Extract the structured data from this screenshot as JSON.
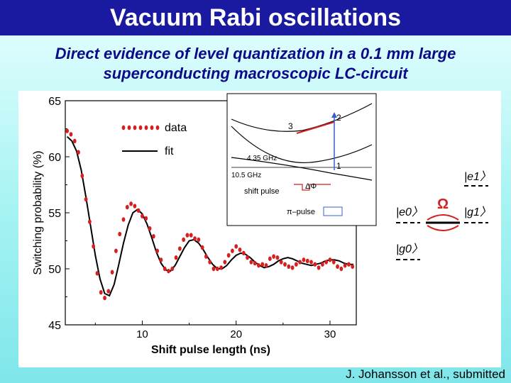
{
  "slide": {
    "title": "Vacuum Rabi oscillations",
    "subtitle_line1": "Direct evidence of level quantization in a 0.1 mm large",
    "subtitle_line2": "superconducting macroscopic LC-circuit",
    "citation": "J. Johansson et al., submitted"
  },
  "chart_data": {
    "type": "scatter",
    "xlabel": "Shift pulse length (ns)",
    "ylabel": "Switching probability (%)",
    "xlim": [
      1.8,
      32.8
    ],
    "ylim": [
      45,
      65
    ],
    "x_ticks": [
      10,
      20,
      30
    ],
    "y_ticks": [
      45,
      50,
      55,
      60,
      65
    ],
    "legend_placement": "top-left",
    "series": [
      {
        "name": "data",
        "style": "dots",
        "color": "#d42020",
        "x": [
          2.0,
          2.4,
          2.8,
          3.2,
          3.6,
          4.0,
          4.4,
          4.8,
          5.2,
          5.6,
          6.0,
          6.4,
          6.8,
          7.2,
          7.6,
          8.0,
          8.4,
          8.8,
          9.2,
          9.6,
          10.0,
          10.4,
          10.8,
          11.2,
          11.6,
          12.0,
          12.4,
          12.8,
          13.2,
          13.6,
          14.0,
          14.4,
          14.8,
          15.2,
          15.6,
          16.0,
          16.4,
          16.8,
          17.2,
          17.6,
          18.0,
          18.4,
          18.8,
          19.2,
          19.6,
          20.0,
          20.4,
          20.8,
          21.2,
          21.6,
          22.0,
          22.4,
          22.8,
          23.2,
          23.6,
          24.0,
          24.4,
          24.8,
          25.2,
          25.6,
          26.0,
          26.4,
          26.8,
          27.2,
          27.6,
          28.0,
          28.4,
          28.8,
          29.2,
          29.6,
          30.0,
          30.4,
          30.8,
          31.2,
          31.6,
          32.0,
          32.4
        ],
        "y": [
          62.3,
          62.0,
          61.4,
          60.4,
          58.3,
          56.2,
          54.2,
          52.0,
          49.6,
          47.9,
          47.4,
          48.0,
          49.7,
          51.6,
          53.1,
          54.4,
          55.5,
          55.8,
          55.6,
          55.2,
          54.7,
          54.5,
          53.6,
          52.9,
          51.6,
          50.8,
          50.0,
          49.8,
          50.0,
          51.0,
          51.8,
          52.6,
          53.0,
          53.0,
          52.7,
          52.6,
          51.9,
          51.1,
          50.6,
          50.0,
          50.0,
          50.1,
          50.6,
          51.2,
          51.6,
          52.0,
          51.7,
          51.4,
          51.0,
          50.6,
          50.5,
          50.3,
          50.4,
          50.3,
          50.9,
          51.1,
          51.0,
          50.6,
          50.4,
          50.2,
          50.1,
          50.4,
          50.6,
          50.8,
          50.7,
          50.6,
          50.4,
          50.1,
          50.4,
          50.6,
          50.8,
          50.6,
          50.2,
          50.0,
          50.3,
          50.4,
          50.2
        ]
      },
      {
        "name": "fit",
        "style": "line",
        "color": "#000000",
        "x": [
          2.0,
          2.5,
          3.0,
          3.5,
          4.0,
          4.5,
          5.0,
          5.5,
          6.0,
          6.5,
          7.0,
          7.5,
          8.0,
          8.5,
          9.0,
          9.5,
          10.0,
          10.5,
          11.0,
          11.5,
          12.0,
          12.5,
          13.0,
          13.5,
          14.0,
          14.5,
          15.0,
          15.5,
          16.0,
          16.5,
          17.0,
          17.5,
          18.0,
          18.5,
          19.0,
          19.5,
          20.0,
          20.5,
          21.0,
          21.5,
          22.0,
          22.5,
          23.0,
          23.5,
          24.0,
          24.5,
          25.0,
          25.5,
          26.0,
          26.5,
          27.0,
          27.5,
          28.0,
          28.5,
          29.0,
          29.5,
          30.0,
          30.5,
          31.0,
          31.5,
          32.0,
          32.5
        ],
        "y": [
          61.8,
          61.4,
          60.5,
          58.8,
          56.4,
          53.8,
          51.2,
          49.1,
          47.8,
          47.6,
          48.6,
          50.4,
          52.3,
          53.9,
          55.0,
          55.3,
          54.9,
          54.0,
          52.8,
          51.5,
          50.5,
          49.9,
          49.8,
          50.3,
          51.1,
          51.9,
          52.5,
          52.6,
          52.3,
          51.7,
          51.0,
          50.4,
          50.0,
          50.0,
          50.3,
          50.8,
          51.2,
          51.4,
          51.3,
          51.0,
          50.6,
          50.3,
          50.1,
          50.2,
          50.4,
          50.7,
          50.9,
          51.0,
          50.9,
          50.7,
          50.5,
          50.4,
          50.3,
          50.4,
          50.5,
          50.7,
          50.8,
          50.8,
          50.7,
          50.5,
          50.4,
          50.4
        ]
      }
    ]
  },
  "inset": {
    "freq_upper": "4.35 GHz",
    "freq_lower": "10.5 GHz",
    "shift_pulse": "shift pulse",
    "pi_pulse": "π–pulse",
    "delta_phi": "ΔΦ",
    "level_1": "1",
    "level_2": "2",
    "level_3": "3"
  },
  "levels": {
    "e1": "|e1〉",
    "e0": "|e0〉",
    "g1": "|g1〉",
    "g0": "|g0〉",
    "omega": "Ω"
  }
}
